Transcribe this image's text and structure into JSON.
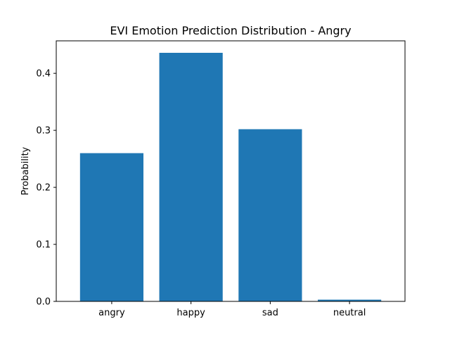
{
  "chart_data": {
    "type": "bar",
    "title": "EVI Emotion Prediction Distribution - Angry",
    "xlabel": "",
    "ylabel": "Probability",
    "categories": [
      "angry",
      "happy",
      "sad",
      "neutral"
    ],
    "values": [
      0.26,
      0.436,
      0.302,
      0.003
    ],
    "ylim": [
      0,
      0.457
    ],
    "yticks": [
      0.0,
      0.1,
      0.2,
      0.3,
      0.4
    ],
    "ytick_labels": [
      "0.0",
      "0.1",
      "0.2",
      "0.3",
      "0.4"
    ],
    "bar_color": "#1f77b4",
    "grid": false,
    "legend": "none"
  }
}
